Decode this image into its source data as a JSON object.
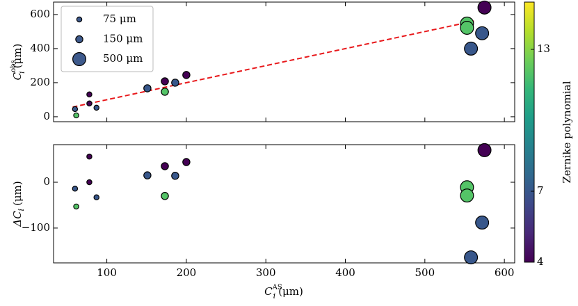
{
  "chart_data": [
    {
      "type": "scatter",
      "x": [
        60,
        61.5,
        78,
        78,
        87,
        151,
        173,
        173,
        186,
        200,
        553,
        553,
        558,
        572,
        575
      ],
      "y": [
        45,
        8,
        131,
        78,
        53,
        167,
        208,
        147,
        200,
        245,
        547,
        522,
        400,
        490,
        641
      ],
      "sizes": [
        75,
        75,
        75,
        75,
        75,
        150,
        150,
        150,
        150,
        150,
        500,
        500,
        500,
        500,
        500
      ],
      "color_values": [
        7,
        12,
        4,
        4,
        7,
        7,
        4,
        12,
        7,
        4,
        12,
        12,
        7,
        7,
        4
      ],
      "xlim": [
        33,
        613
      ],
      "ylim": [
        -29,
        673
      ],
      "xticks": [
        100,
        200,
        300,
        400,
        500,
        600
      ],
      "yticks": [
        0,
        200,
        400,
        600
      ],
      "ylabel": {
        "symbol": "C",
        "sub": "i",
        "sup": "obs",
        "unit": "(μm)"
      },
      "fit": {
        "x": [
          57,
          563
        ],
        "y": [
          57,
          563
        ],
        "color": "#e8191c",
        "dashed": true
      },
      "legend": {
        "position": "upper left",
        "entries": [
          {
            "label": "75 μm",
            "size": 75
          },
          {
            "label": "150 μm",
            "size": 150
          },
          {
            "label": "500 μm",
            "size": 500
          }
        ],
        "marker_color": "#3e5a8c"
      },
      "colorbar": {
        "label": "Zernike polynomial",
        "lim": [
          4,
          15
        ],
        "ticks": [
          4,
          7,
          13
        ],
        "colormap": [
          "#440154",
          "#482878",
          "#3e4989",
          "#31688e",
          "#26828e",
          "#1f9e89",
          "#35b779",
          "#6ece58",
          "#b5de2b",
          "#fde725"
        ]
      }
    },
    {
      "type": "scatter",
      "x": [
        60,
        61.5,
        78,
        78,
        87,
        151,
        173,
        173,
        186,
        200,
        553,
        553,
        558,
        572,
        575
      ],
      "y": [
        -14,
        -53,
        56,
        0,
        -33,
        15,
        35,
        -30,
        14,
        44,
        -11,
        -29,
        -164,
        -88,
        70
      ],
      "sizes": [
        75,
        75,
        75,
        75,
        75,
        150,
        150,
        150,
        150,
        150,
        500,
        500,
        500,
        500,
        500
      ],
      "color_values": [
        7,
        12,
        4,
        4,
        7,
        7,
        4,
        12,
        7,
        4,
        12,
        12,
        7,
        7,
        4
      ],
      "xlim": [
        33,
        613
      ],
      "ylim": [
        -176,
        82
      ],
      "xticks": [
        100,
        200,
        300,
        400,
        500,
        600
      ],
      "yticks": [
        {
          "value": -100,
          "label": "−100"
        },
        0
      ],
      "ylabel": {
        "symbol": "ΔC",
        "sub": "i",
        "unit": "(μm)"
      },
      "xlabel": {
        "symbol": "C",
        "sub": "i",
        "sup": "AS",
        "unit": "(μm)"
      }
    }
  ]
}
